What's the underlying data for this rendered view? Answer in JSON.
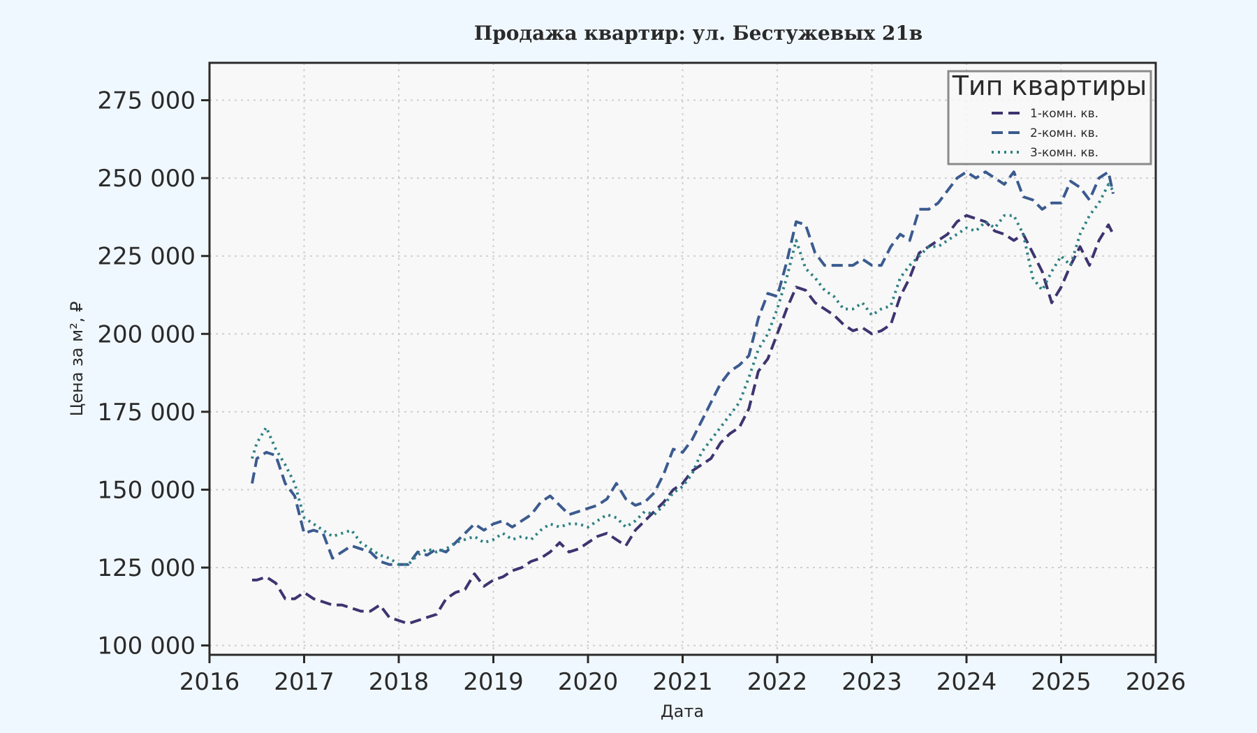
{
  "chart_data": {
    "type": "line",
    "title": "Продажа квартир: ул. Бестужевых 21в",
    "xlabel": "Дата",
    "ylabel": "Цена за м², ₽",
    "xlim": [
      2016,
      2026
    ],
    "ylim": [
      97000,
      287000
    ],
    "x_ticks": [
      2016,
      2017,
      2018,
      2019,
      2020,
      2021,
      2022,
      2023,
      2024,
      2025,
      2026
    ],
    "x_tick_labels": [
      "2016",
      "2017",
      "2018",
      "2019",
      "2020",
      "2021",
      "2022",
      "2023",
      "2024",
      "2025",
      "2026"
    ],
    "y_ticks": [
      100000,
      125000,
      150000,
      175000,
      200000,
      225000,
      250000,
      275000
    ],
    "y_tick_labels": [
      "100 000",
      "125 000",
      "150 000",
      "175 000",
      "200 000",
      "225 000",
      "250 000",
      "275 000"
    ],
    "grid": true,
    "legend": {
      "title": "Тип квартиры",
      "position": "top-right"
    },
    "series": [
      {
        "name": "1-комн. кв.",
        "color": "#3d3470",
        "dash": "dashed",
        "x": [
          2016.45,
          2016.5,
          2016.6,
          2016.7,
          2016.8,
          2016.9,
          2017.0,
          2017.1,
          2017.2,
          2017.3,
          2017.4,
          2017.5,
          2017.6,
          2017.7,
          2017.8,
          2017.9,
          2018.0,
          2018.1,
          2018.2,
          2018.3,
          2018.4,
          2018.5,
          2018.6,
          2018.7,
          2018.8,
          2018.9,
          2019.0,
          2019.1,
          2019.2,
          2019.3,
          2019.4,
          2019.5,
          2019.6,
          2019.7,
          2019.8,
          2019.9,
          2020.0,
          2020.1,
          2020.2,
          2020.3,
          2020.4,
          2020.5,
          2020.6,
          2020.7,
          2020.8,
          2020.9,
          2021.0,
          2021.1,
          2021.2,
          2021.3,
          2021.4,
          2021.5,
          2021.6,
          2021.7,
          2021.8,
          2021.9,
          2022.0,
          2022.1,
          2022.2,
          2022.3,
          2022.4,
          2022.5,
          2022.6,
          2022.7,
          2022.8,
          2022.9,
          2023.0,
          2023.1,
          2023.2,
          2023.3,
          2023.4,
          2023.5,
          2023.6,
          2023.7,
          2023.8,
          2023.9,
          2024.0,
          2024.1,
          2024.2,
          2024.3,
          2024.4,
          2024.5,
          2024.6,
          2024.7,
          2024.8,
          2024.9,
          2025.0,
          2025.1,
          2025.2,
          2025.3,
          2025.4,
          2025.5,
          2025.55
        ],
        "y": [
          121000,
          121000,
          122000,
          120000,
          115000,
          115000,
          117000,
          115000,
          114000,
          113000,
          113000,
          112000,
          111000,
          111000,
          113000,
          109000,
          108000,
          107000,
          108000,
          109000,
          110000,
          115000,
          117000,
          118000,
          123000,
          119000,
          121000,
          122000,
          124000,
          125000,
          127000,
          128000,
          130000,
          133000,
          130000,
          131000,
          133000,
          135000,
          136000,
          134000,
          132000,
          137000,
          140000,
          143000,
          146000,
          150000,
          152000,
          156000,
          158000,
          160000,
          165000,
          168000,
          170000,
          176000,
          188000,
          192000,
          200000,
          208000,
          215000,
          214000,
          210000,
          208000,
          206000,
          203000,
          201000,
          202000,
          200000,
          201000,
          203000,
          212000,
          218000,
          226000,
          228000,
          230000,
          232000,
          236000,
          238000,
          237000,
          236000,
          233000,
          232000,
          230000,
          232000,
          226000,
          220000,
          210000,
          215000,
          222000,
          228000,
          222000,
          230000,
          235000,
          232000
        ]
      },
      {
        "name": "2-комн. кв.",
        "color": "#3b5b8f",
        "dash": "dashed",
        "x": [
          2016.45,
          2016.5,
          2016.6,
          2016.7,
          2016.8,
          2016.9,
          2017.0,
          2017.1,
          2017.2,
          2017.3,
          2017.4,
          2017.5,
          2017.6,
          2017.7,
          2017.8,
          2017.9,
          2018.0,
          2018.1,
          2018.2,
          2018.3,
          2018.4,
          2018.5,
          2018.6,
          2018.7,
          2018.8,
          2018.9,
          2019.0,
          2019.1,
          2019.2,
          2019.3,
          2019.4,
          2019.5,
          2019.6,
          2019.7,
          2019.8,
          2019.9,
          2020.0,
          2020.1,
          2020.2,
          2020.3,
          2020.4,
          2020.5,
          2020.6,
          2020.7,
          2020.8,
          2020.9,
          2021.0,
          2021.1,
          2021.2,
          2021.3,
          2021.4,
          2021.5,
          2021.6,
          2021.7,
          2021.8,
          2021.9,
          2022.0,
          2022.1,
          2022.2,
          2022.3,
          2022.4,
          2022.5,
          2022.6,
          2022.7,
          2022.8,
          2022.9,
          2023.0,
          2023.1,
          2023.2,
          2023.3,
          2023.4,
          2023.5,
          2023.6,
          2023.7,
          2023.8,
          2023.9,
          2024.0,
          2024.1,
          2024.2,
          2024.3,
          2024.4,
          2024.5,
          2024.6,
          2024.7,
          2024.8,
          2024.9,
          2025.0,
          2025.1,
          2025.2,
          2025.3,
          2025.4,
          2025.5,
          2025.55
        ],
        "y": [
          152000,
          160000,
          162000,
          161000,
          152000,
          148000,
          136000,
          137000,
          136000,
          128000,
          130000,
          132000,
          131000,
          130000,
          127000,
          126000,
          126000,
          126000,
          130000,
          129000,
          131000,
          130000,
          133000,
          136000,
          139000,
          137000,
          139000,
          140000,
          138000,
          140000,
          142000,
          146000,
          148000,
          145000,
          142000,
          143000,
          144000,
          145000,
          147000,
          152000,
          147000,
          145000,
          146000,
          149000,
          155000,
          163000,
          162000,
          166000,
          172000,
          178000,
          184000,
          188000,
          190000,
          193000,
          205000,
          213000,
          212000,
          223000,
          236000,
          235000,
          226000,
          222000,
          222000,
          222000,
          222000,
          224000,
          222000,
          222000,
          228000,
          232000,
          230000,
          240000,
          240000,
          242000,
          246000,
          250000,
          252000,
          250000,
          252000,
          250000,
          248000,
          252000,
          244000,
          243000,
          240000,
          242000,
          242000,
          249000,
          247000,
          243000,
          250000,
          252000,
          245000
        ]
      },
      {
        "name": "3-комн. кв.",
        "color": "#2e8183",
        "dash": "dotted",
        "x": [
          2016.45,
          2016.5,
          2016.6,
          2016.7,
          2016.8,
          2016.9,
          2017.0,
          2017.1,
          2017.2,
          2017.3,
          2017.4,
          2017.5,
          2017.6,
          2017.7,
          2017.8,
          2017.9,
          2018.0,
          2018.1,
          2018.2,
          2018.3,
          2018.4,
          2018.5,
          2018.6,
          2018.7,
          2018.8,
          2018.9,
          2019.0,
          2019.1,
          2019.2,
          2019.3,
          2019.4,
          2019.5,
          2019.6,
          2019.7,
          2019.8,
          2019.9,
          2020.0,
          2020.1,
          2020.2,
          2020.3,
          2020.4,
          2020.5,
          2020.6,
          2020.7,
          2020.8,
          2020.9,
          2021.0,
          2021.1,
          2021.2,
          2021.3,
          2021.4,
          2021.5,
          2021.6,
          2021.7,
          2021.8,
          2021.9,
          2022.0,
          2022.1,
          2022.2,
          2022.3,
          2022.4,
          2022.5,
          2022.6,
          2022.7,
          2022.8,
          2022.9,
          2023.0,
          2023.1,
          2023.2,
          2023.3,
          2023.4,
          2023.5,
          2023.6,
          2023.7,
          2023.8,
          2023.9,
          2024.0,
          2024.1,
          2024.2,
          2024.3,
          2024.4,
          2024.5,
          2024.6,
          2024.7,
          2024.8,
          2024.9,
          2025.0,
          2025.1,
          2025.2,
          2025.3,
          2025.4,
          2025.5,
          2025.55
        ],
        "y": [
          160000,
          165000,
          170000,
          163000,
          158000,
          152000,
          141000,
          139000,
          137000,
          135000,
          136000,
          137000,
          133000,
          131000,
          129000,
          128000,
          126000,
          126000,
          129000,
          131000,
          130000,
          131000,
          133000,
          134000,
          135000,
          133000,
          134000,
          136000,
          134000,
          135000,
          134000,
          137000,
          139000,
          138000,
          139000,
          139000,
          138000,
          140000,
          142000,
          141000,
          138000,
          140000,
          143000,
          142000,
          145000,
          149000,
          151000,
          155000,
          162000,
          166000,
          170000,
          174000,
          178000,
          186000,
          195000,
          200000,
          208000,
          218000,
          230000,
          221000,
          218000,
          214000,
          212000,
          208000,
          208000,
          210000,
          206000,
          208000,
          209000,
          218000,
          222000,
          225000,
          228000,
          228000,
          230000,
          232000,
          234000,
          233000,
          236000,
          234000,
          238000,
          238000,
          232000,
          218000,
          214000,
          220000,
          225000,
          222000,
          232000,
          238000,
          242000,
          248000,
          246000
        ]
      }
    ]
  }
}
